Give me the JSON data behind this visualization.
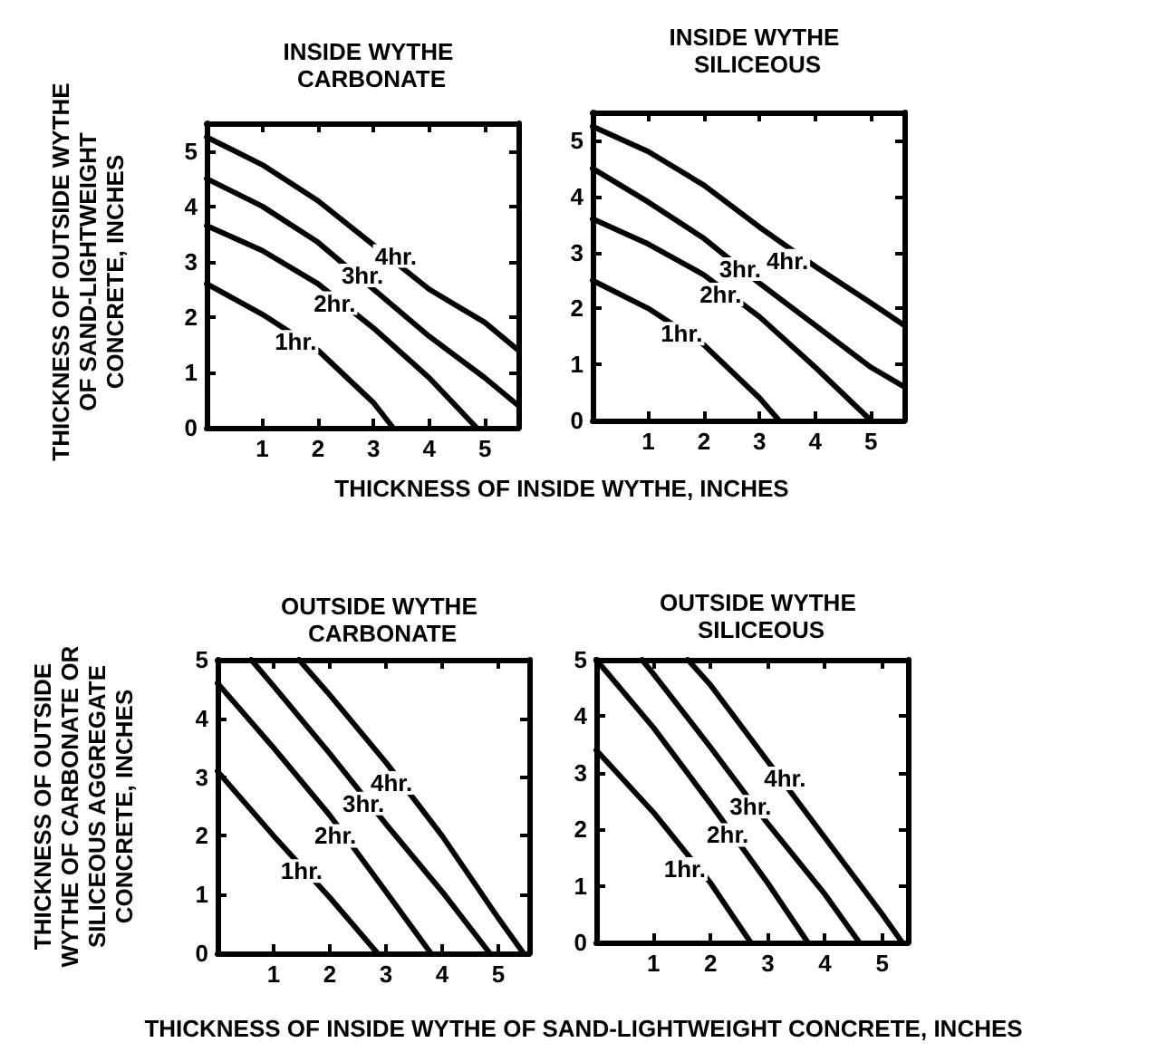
{
  "chart_data": [
    {
      "type": "line",
      "title": "INSIDE WYTHE CARBONATE",
      "xlabel": "THICKNESS OF INSIDE WYTHE, INCHES",
      "ylabel": "THICKNESS OF OUTSIDE WYTHE OF SAND-LIGHTWEIGHT CONCRETE, INCHES",
      "xlim": [
        0,
        5.6
      ],
      "ylim": [
        0,
        5.5
      ],
      "xticks": [
        1,
        2,
        3,
        4,
        5
      ],
      "yticks": [
        0,
        1,
        2,
        3,
        4,
        5
      ],
      "grid": false,
      "marker": "none",
      "line_style": "solid",
      "series": [
        {
          "color": "#000000",
          "x": [
            0,
            1,
            2,
            3,
            3.35
          ],
          "values": [
            2.6,
            2.05,
            1.4,
            0.45,
            0
          ]
        },
        {
          "color": "#000000",
          "x": [
            0,
            1,
            2,
            3,
            4,
            4.85
          ],
          "values": [
            3.65,
            3.2,
            2.6,
            1.8,
            0.9,
            0
          ]
        },
        {
          "color": "#000000",
          "x": [
            0,
            1,
            2,
            3,
            4,
            5,
            5.6
          ],
          "values": [
            4.5,
            4.0,
            3.35,
            2.5,
            1.65,
            0.9,
            0.4
          ]
        },
        {
          "color": "#000000",
          "x": [
            0,
            1,
            2,
            3,
            4,
            5,
            5.6
          ],
          "values": [
            5.25,
            4.75,
            4.1,
            3.3,
            2.5,
            1.9,
            1.4
          ]
        }
      ],
      "annotations": [
        {
          "text": "1hr.",
          "x": 1.6,
          "y": 1.55
        },
        {
          "text": "2hr.",
          "x": 2.3,
          "y": 2.25
        },
        {
          "text": "3hr.",
          "x": 2.8,
          "y": 2.75
        },
        {
          "text": "4hr.",
          "x": 3.4,
          "y": 3.1
        }
      ]
    },
    {
      "type": "line",
      "title": "INSIDE WYTHE SILICEOUS",
      "xlim": [
        0,
        5.6
      ],
      "ylim": [
        0,
        5.5
      ],
      "xticks": [
        1,
        2,
        3,
        4,
        5
      ],
      "yticks": [
        0,
        1,
        2,
        3,
        4,
        5
      ],
      "grid": false,
      "marker": "none",
      "line_style": "solid",
      "series": [
        {
          "color": "#000000",
          "x": [
            0,
            1,
            2,
            3,
            3.35
          ],
          "values": [
            2.5,
            2.0,
            1.35,
            0.4,
            0
          ]
        },
        {
          "color": "#000000",
          "x": [
            0,
            1,
            2,
            3,
            4,
            5
          ],
          "values": [
            3.6,
            3.15,
            2.6,
            1.85,
            0.95,
            0
          ]
        },
        {
          "color": "#000000",
          "x": [
            0,
            1,
            2,
            3,
            4,
            5,
            5.6
          ],
          "values": [
            4.5,
            3.9,
            3.25,
            2.45,
            1.7,
            0.95,
            0.6
          ]
        },
        {
          "color": "#000000",
          "x": [
            0,
            1,
            2,
            3,
            4,
            5,
            5.6
          ],
          "values": [
            5.25,
            4.8,
            4.2,
            3.45,
            2.75,
            2.1,
            1.7
          ]
        }
      ],
      "annotations": [
        {
          "text": "1hr.",
          "x": 1.6,
          "y": 1.55
        },
        {
          "text": "2hr.",
          "x": 2.3,
          "y": 2.25
        },
        {
          "text": "3hr.",
          "x": 2.65,
          "y": 2.7
        },
        {
          "text": "4hr.",
          "x": 3.5,
          "y": 2.85
        }
      ]
    },
    {
      "type": "line",
      "title": "OUTSIDE WYTHE CARBONATE",
      "xlabel": "THICKNESS OF INSIDE WYTHE OF SAND-LIGHTWEIGHT CONCRETE, INCHES",
      "ylabel": "THICKNESS OF OUTSIDE WYTHE OF CARBONATE OR SILICEOUS AGGREGATE CONCRETE, INCHES",
      "xlim": [
        0,
        5.55
      ],
      "ylim": [
        0,
        5
      ],
      "xticks": [
        1,
        2,
        3,
        4,
        5
      ],
      "yticks": [
        0,
        1,
        2,
        3,
        4,
        5
      ],
      "grid": false,
      "marker": "none",
      "line_style": "solid",
      "series": [
        {
          "color": "#000000",
          "x": [
            0,
            1,
            2,
            2.85
          ],
          "values": [
            3.1,
            2.0,
            0.95,
            0
          ]
        },
        {
          "color": "#000000",
          "x": [
            0,
            1,
            2,
            3,
            3.8
          ],
          "values": [
            4.6,
            3.5,
            2.35,
            1.05,
            0
          ]
        },
        {
          "color": "#000000",
          "x": [
            0.6,
            1,
            2,
            3,
            4,
            4.85
          ],
          "values": [
            5,
            4.55,
            3.4,
            2.2,
            1.05,
            0
          ]
        },
        {
          "color": "#000000",
          "x": [
            1.45,
            2,
            3,
            4,
            5,
            5.45
          ],
          "values": [
            5,
            4.4,
            3.25,
            2.0,
            0.6,
            0
          ]
        }
      ],
      "annotations": [
        {
          "text": "1hr.",
          "x": 1.5,
          "y": 1.4
        },
        {
          "text": "2hr.",
          "x": 2.1,
          "y": 2.0
        },
        {
          "text": "3hr.",
          "x": 2.6,
          "y": 2.55
        },
        {
          "text": "4hr.",
          "x": 3.1,
          "y": 2.9
        }
      ]
    },
    {
      "type": "line",
      "title": "OUTSIDE WYTHE SILICEOUS",
      "xlim": [
        0,
        5.45
      ],
      "ylim": [
        0,
        5
      ],
      "xticks": [
        1,
        2,
        3,
        4,
        5
      ],
      "yticks": [
        0,
        1,
        2,
        3,
        4,
        5
      ],
      "grid": false,
      "marker": "none",
      "line_style": "solid",
      "series": [
        {
          "color": "#000000",
          "x": [
            0,
            1,
            2,
            2.7
          ],
          "values": [
            3.4,
            2.3,
            1.05,
            0
          ]
        },
        {
          "color": "#000000",
          "x": [
            0,
            1,
            2,
            3,
            3.7
          ],
          "values": [
            5,
            3.8,
            2.45,
            1.05,
            0
          ]
        },
        {
          "color": "#000000",
          "x": [
            0.8,
            1,
            2,
            3,
            4,
            4.6
          ],
          "values": [
            5,
            4.75,
            3.45,
            2.1,
            0.85,
            0
          ]
        },
        {
          "color": "#000000",
          "x": [
            1.6,
            2,
            3,
            4,
            5,
            5.35
          ],
          "values": [
            5,
            4.55,
            3.2,
            1.85,
            0.5,
            0
          ]
        }
      ],
      "annotations": [
        {
          "text": "1hr.",
          "x": 1.55,
          "y": 1.3
        },
        {
          "text": "2hr.",
          "x": 2.3,
          "y": 1.9
        },
        {
          "text": "3hr.",
          "x": 2.7,
          "y": 2.4
        },
        {
          "text": "4hr.",
          "x": 3.3,
          "y": 2.9
        }
      ]
    }
  ]
}
